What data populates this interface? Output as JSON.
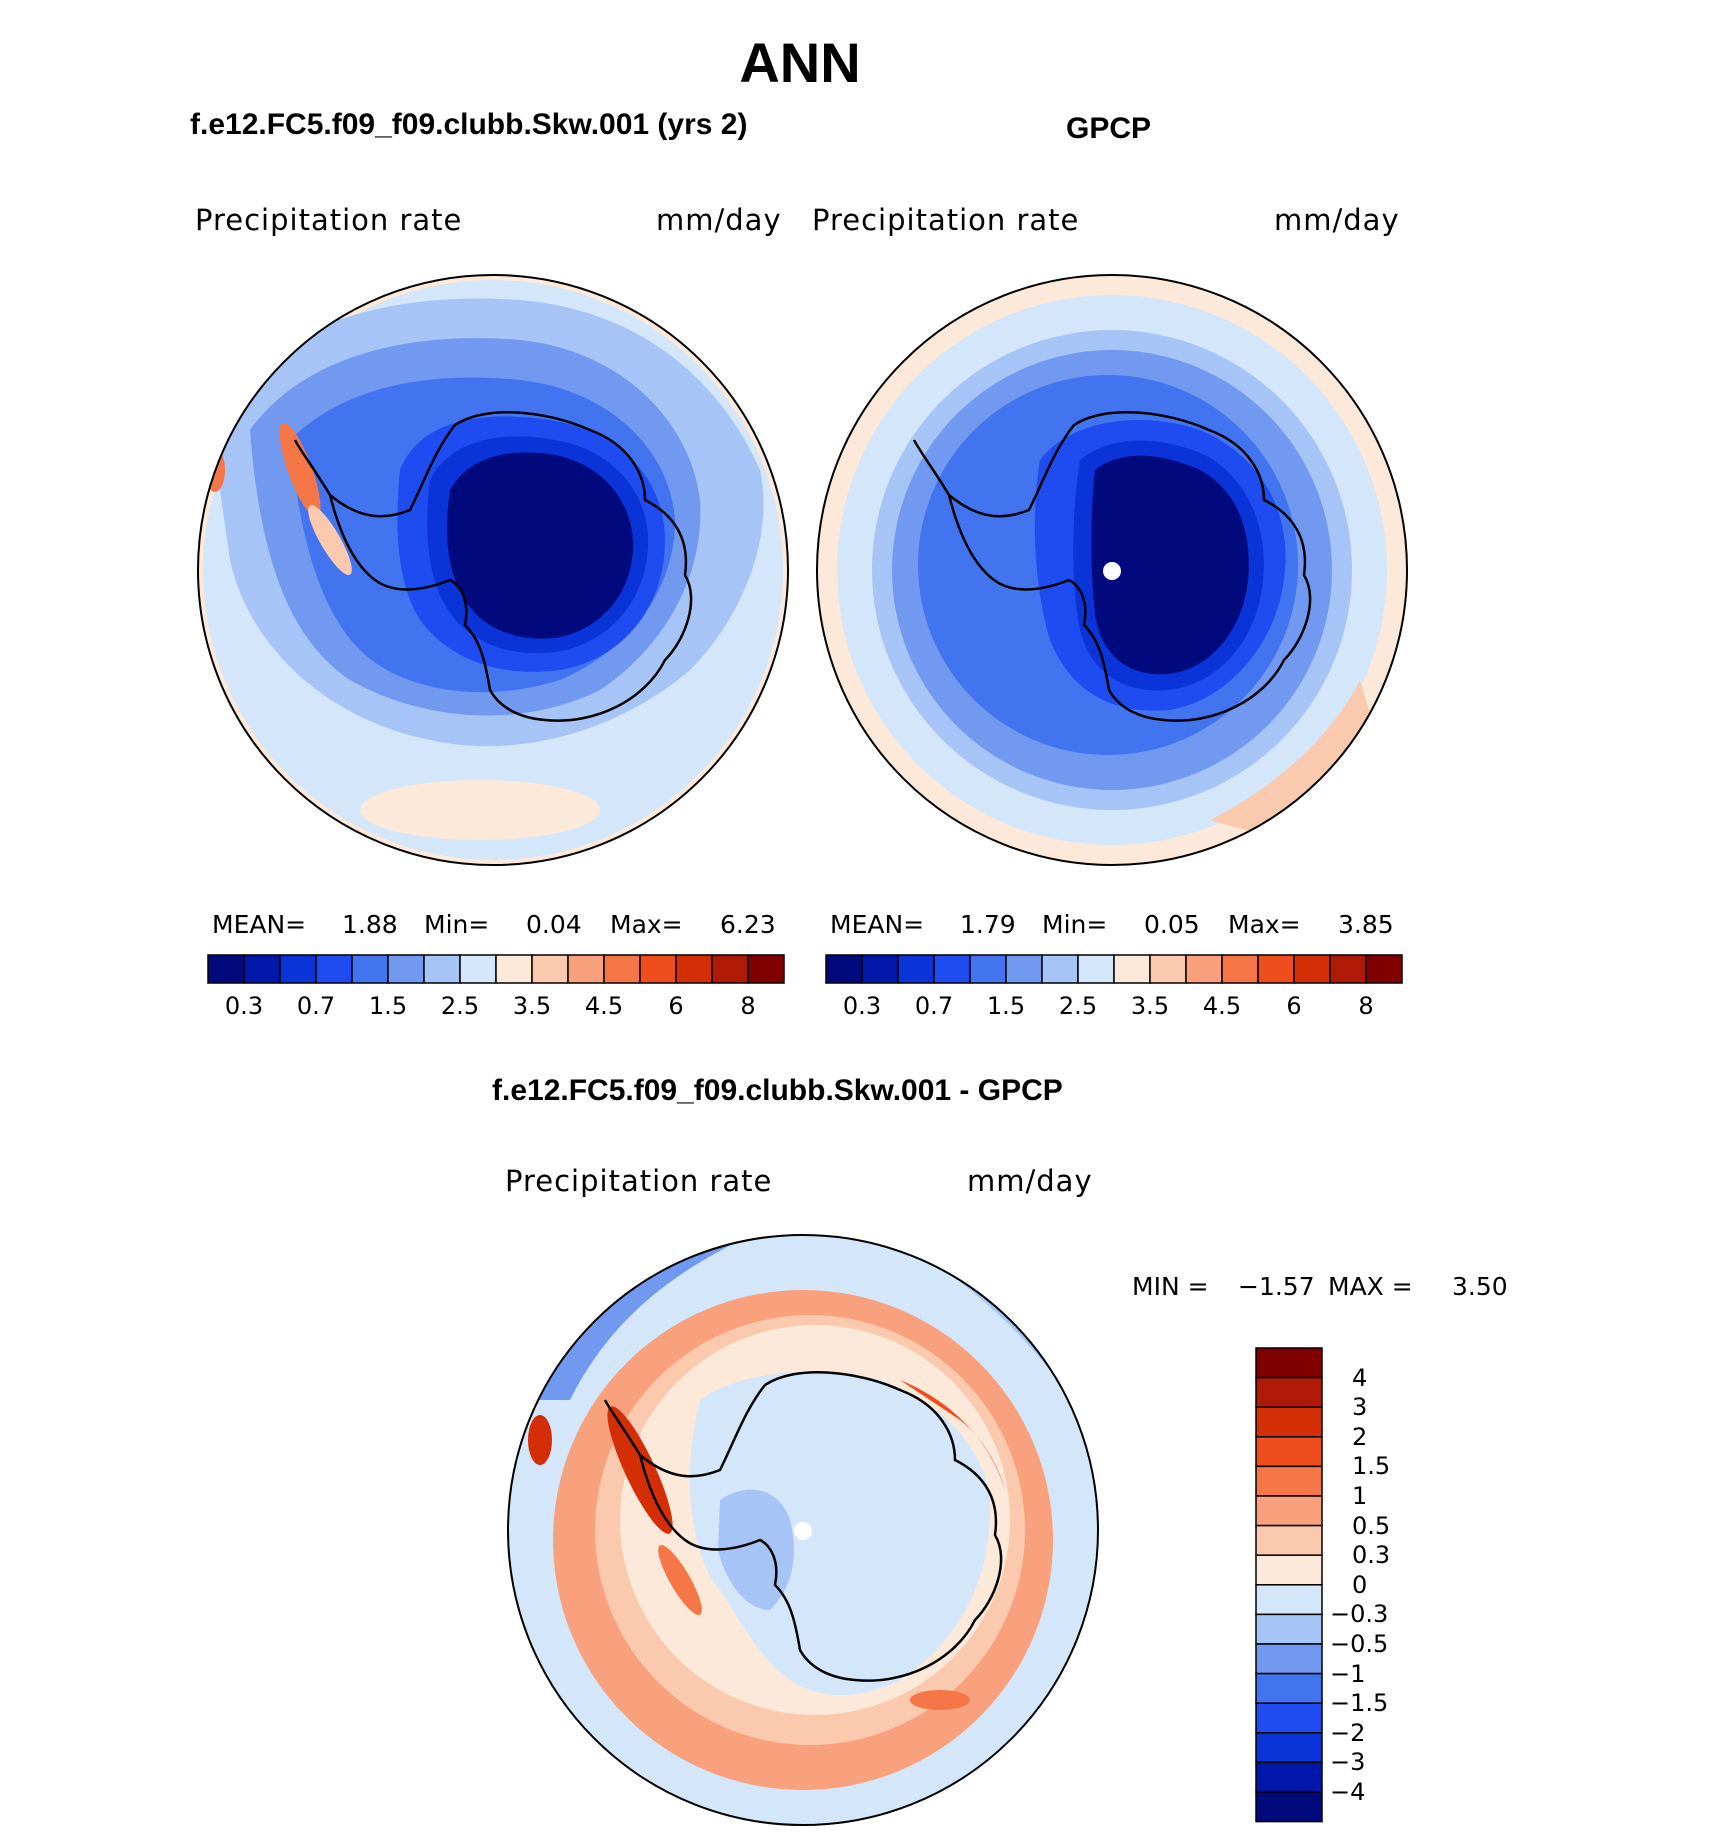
{
  "title": "ANN",
  "panels": {
    "model": {
      "header": "f.e12.FC5.f09_f09.clubb.Skw.001 (yrs 2)",
      "variable": "Precipitation rate",
      "units": "mm/day",
      "stats": {
        "mean_label": "MEAN=",
        "mean": "1.88",
        "min_label": "Min=",
        "min": "0.04",
        "max_label": "Max=",
        "max": "6.23"
      }
    },
    "obs": {
      "header": "GPCP",
      "variable": "Precipitation rate",
      "units": "mm/day",
      "stats": {
        "mean_label": "MEAN=",
        "mean": "1.79",
        "min_label": "Min=",
        "min": "0.05",
        "max_label": "Max=",
        "max": "3.85"
      }
    },
    "diff": {
      "header": "f.e12.FC5.f09_f09.clubb.Skw.001 - GPCP",
      "variable": "Precipitation rate",
      "units": "mm/day",
      "stats": {
        "min_label": "MIN =",
        "min": "−1.57",
        "max_label": "MAX =",
        "max": "3.50"
      }
    }
  },
  "colorbar_abs": {
    "colors": [
      "#000a7c",
      "#0017aa",
      "#0a34d8",
      "#1f4cf0",
      "#4374f0",
      "#7199f0",
      "#a6c4f5",
      "#d4e6fa",
      "#fde9d9",
      "#fbc9ad",
      "#f8a17c",
      "#f57747",
      "#f04d1f",
      "#d42e07",
      "#b01905",
      "#800000"
    ],
    "tick_labels": [
      "0.3",
      "0.7",
      "1.5",
      "2.5",
      "3.5",
      "4.5",
      "6",
      "8"
    ]
  },
  "colorbar_diff": {
    "colors": [
      "#800000",
      "#b01905",
      "#d42e07",
      "#f04d1f",
      "#f57747",
      "#f8a17c",
      "#fbc9ad",
      "#fde9d9",
      "#d4e6fa",
      "#a6c4f5",
      "#7199f0",
      "#4374f0",
      "#1f4cf0",
      "#0a34d8",
      "#0017aa",
      "#000a7c"
    ],
    "tick_labels": [
      "4",
      "3",
      "2",
      "1.5",
      "1",
      "0.5",
      "0.3",
      "0",
      "−0.3",
      "−0.5",
      "−1",
      "−1.5",
      "−2",
      "−3",
      "−4"
    ]
  },
  "map_legend": {
    "south_pole_dot": "white dot marks the south pole (no data)"
  },
  "colors": {
    "coastline": "#000000",
    "background": "#ffffff"
  }
}
